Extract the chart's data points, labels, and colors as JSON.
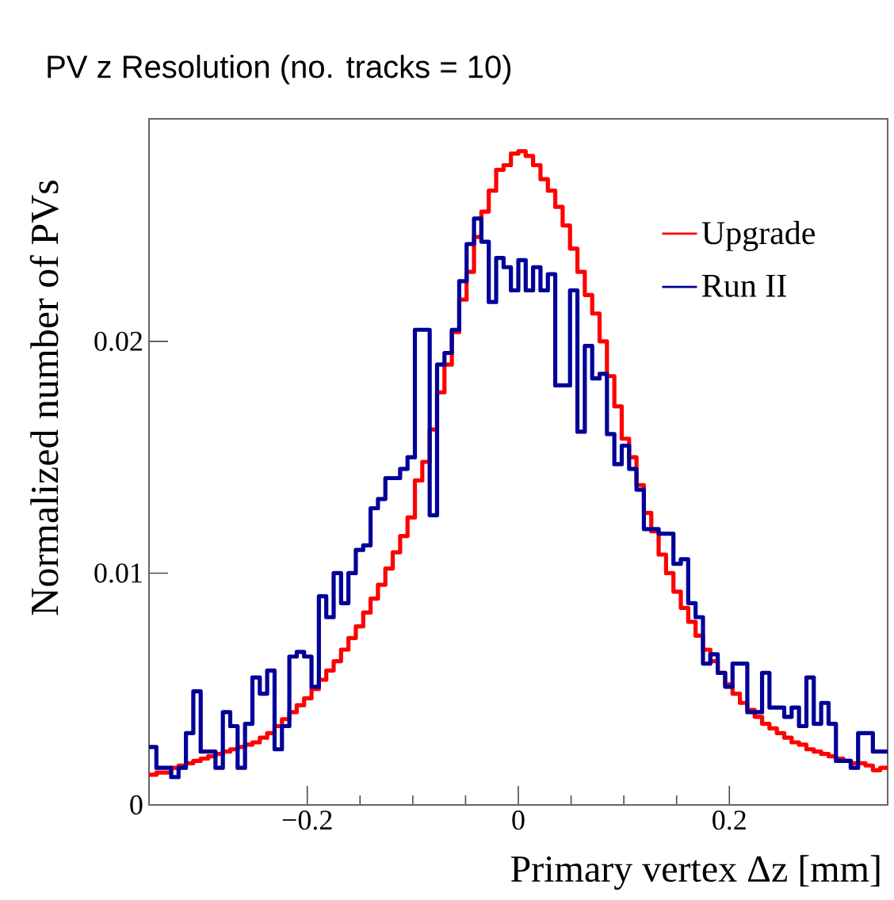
{
  "chart_data": {
    "type": "histogram",
    "title": "PV z Resolution (no. tracks = 10)",
    "xlabel": "Primary vertex Δz [mm]",
    "ylabel": "Normalized number of PVs",
    "bins": [
      -0.35,
      -0.343,
      -0.336,
      -0.329,
      -0.322,
      -0.315,
      -0.308,
      -0.301,
      -0.294,
      -0.287,
      -0.28,
      -0.273,
      -0.266,
      -0.259,
      -0.252,
      -0.245,
      -0.238,
      -0.231,
      -0.224,
      -0.217,
      -0.21,
      -0.203,
      -0.196,
      -0.189,
      -0.182,
      -0.175,
      -0.168,
      -0.161,
      -0.154,
      -0.147,
      -0.14,
      -0.133,
      -0.126,
      -0.119,
      -0.112,
      -0.105,
      -0.098,
      -0.091,
      -0.084,
      -0.077,
      -0.07,
      -0.063,
      -0.056,
      -0.049,
      -0.042,
      -0.035,
      -0.028,
      -0.021,
      -0.014,
      -0.007,
      0,
      0.007,
      0.014,
      0.021,
      0.028,
      0.035,
      0.042,
      0.049,
      0.056,
      0.063,
      0.07,
      0.077,
      0.084,
      0.091,
      0.098,
      0.105,
      0.112,
      0.119,
      0.126,
      0.133,
      0.14,
      0.147,
      0.154,
      0.161,
      0.168,
      0.175,
      0.182,
      0.189,
      0.196,
      0.203,
      0.21,
      0.217,
      0.224,
      0.231,
      0.238,
      0.245,
      0.252,
      0.259,
      0.266,
      0.273,
      0.28,
      0.287,
      0.294,
      0.301,
      0.308,
      0.315,
      0.322,
      0.329,
      0.336,
      0.343,
      0.35
    ],
    "series": [
      {
        "name": "Upgrade",
        "color": "#ff0000",
        "values": [
          0.0013,
          0.0014,
          0.0014,
          0.0016,
          0.0017,
          0.0018,
          0.0019,
          0.002,
          0.0021,
          0.0022,
          0.0023,
          0.0024,
          0.0025,
          0.0026,
          0.0027,
          0.0029,
          0.0031,
          0.0034,
          0.0037,
          0.004,
          0.0043,
          0.0046,
          0.005,
          0.0054,
          0.0058,
          0.0062,
          0.0067,
          0.0072,
          0.0077,
          0.0083,
          0.0089,
          0.0095,
          0.0102,
          0.0109,
          0.0116,
          0.0124,
          0.014,
          0.0148,
          0.0162,
          0.0178,
          0.019,
          0.0204,
          0.0218,
          0.023,
          0.0245,
          0.0256,
          0.0265,
          0.0274,
          0.0276,
          0.0281,
          0.0282,
          0.028,
          0.0276,
          0.027,
          0.0265,
          0.0258,
          0.025,
          0.024,
          0.023,
          0.022,
          0.0212,
          0.02,
          0.0185,
          0.0172,
          0.0158,
          0.015,
          0.0138,
          0.0126,
          0.0118,
          0.0108,
          0.01,
          0.0092,
          0.0085,
          0.0079,
          0.0073,
          0.0067,
          0.0062,
          0.0057,
          0.0052,
          0.0048,
          0.0044,
          0.0041,
          0.0038,
          0.0035,
          0.0033,
          0.0031,
          0.0029,
          0.0027,
          0.0026,
          0.0024,
          0.0023,
          0.0022,
          0.0021,
          0.002,
          0.0019,
          0.0018,
          0.0018,
          0.0017,
          0.0015,
          0.0016
        ]
      },
      {
        "name": "Run II",
        "color": "#000099",
        "values": [
          0.0025,
          0.0016,
          0.0016,
          0.0012,
          0.0016,
          0.0031,
          0.0049,
          0.0023,
          0.0023,
          0.0016,
          0.004,
          0.0034,
          0.0016,
          0.0035,
          0.0055,
          0.0048,
          0.0058,
          0.0024,
          0.0034,
          0.0064,
          0.0066,
          0.0064,
          0.0051,
          0.009,
          0.0081,
          0.01,
          0.0087,
          0.01,
          0.011,
          0.0112,
          0.0128,
          0.0132,
          0.0141,
          0.0141,
          0.0145,
          0.015,
          0.0205,
          0.0205,
          0.0125,
          0.019,
          0.0195,
          0.0205,
          0.0226,
          0.0242,
          0.0253,
          0.0243,
          0.0217,
          0.0236,
          0.0232,
          0.0222,
          0.0235,
          0.0222,
          0.0232,
          0.0222,
          0.0229,
          0.0181,
          0.0181,
          0.0222,
          0.0161,
          0.0198,
          0.0184,
          0.0186,
          0.016,
          0.0147,
          0.0155,
          0.0145,
          0.0136,
          0.0119,
          0.0119,
          0.0117,
          0.0117,
          0.0104,
          0.0106,
          0.0087,
          0.0081,
          0.0061,
          0.0065,
          0.0057,
          0.0051,
          0.0061,
          0.0061,
          0.004,
          0.004,
          0.0057,
          0.0042,
          0.0042,
          0.0038,
          0.0042,
          0.0034,
          0.0055,
          0.0035,
          0.0044,
          0.0035,
          0.0019,
          0.0019,
          0.0016,
          0.0031,
          0.0031,
          0.0023,
          0.0023
        ]
      }
    ],
    "xlim": [
      -0.35,
      0.35
    ],
    "ylim": [
      0,
      0.0296
    ],
    "xticks": [
      {
        "value": -0.2,
        "label": "−0.2"
      },
      0,
      0.2
    ],
    "yticks": [
      0,
      0.01,
      0.02
    ],
    "legend": "top right"
  }
}
